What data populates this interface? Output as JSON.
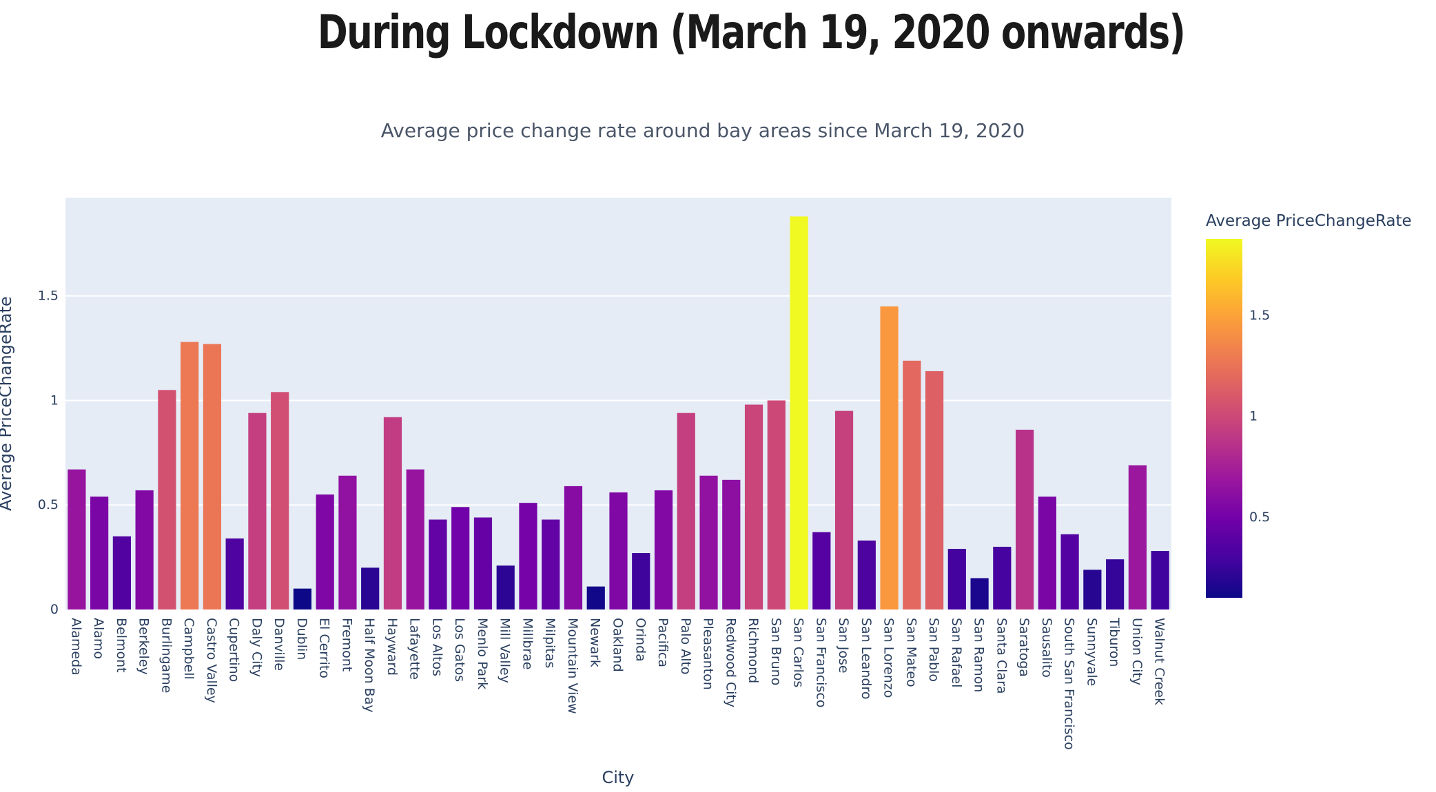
{
  "page": {
    "title": "During Lockdown (March 19, 2020 onwards)"
  },
  "chart_data": {
    "type": "bar",
    "title": "Average price change rate around bay areas since March 19, 2020",
    "xlabel": "City",
    "ylabel": "Average PriceChangeRate",
    "ylim": [
      0,
      1.97
    ],
    "yticks": [
      0,
      0.5,
      1,
      1.5
    ],
    "ytick_labels": [
      "0",
      "0.5",
      "1",
      "1.5"
    ],
    "grid": true,
    "colorbar": {
      "title": "Average PriceChangeRate",
      "range": [
        0.1,
        1.88
      ],
      "ticks": [
        0.5,
        1,
        1.5
      ],
      "tick_labels": [
        "0.5",
        "1",
        "1.5"
      ],
      "colorscale": [
        "#0d0887",
        "#46039f",
        "#7201a8",
        "#9c179e",
        "#bd3786",
        "#d8576b",
        "#ed7953",
        "#fb9f3a",
        "#fdca26",
        "#f0f921"
      ]
    },
    "categories": [
      "Alameda",
      "Alamo",
      "Belmont",
      "Berkeley",
      "Burlingame",
      "Campbell",
      "Castro Valley",
      "Cupertino",
      "Daly City",
      "Danville",
      "Dublin",
      "El Cerrito",
      "Fremont",
      "Half Moon Bay",
      "Hayward",
      "Lafayette",
      "Los Altos",
      "Los Gatos",
      "Menlo Park",
      "Mill Valley",
      "Millbrae",
      "Milpitas",
      "Mountain View",
      "Newark",
      "Oakland",
      "Orinda",
      "Pacifica",
      "Palo Alto",
      "Pleasanton",
      "Redwood City",
      "Richmond",
      "San Bruno",
      "San Carlos",
      "San Francisco",
      "San Jose",
      "San Leandro",
      "San Lorenzo",
      "San Mateo",
      "San Pablo",
      "San Rafael",
      "San Ramon",
      "Santa Clara",
      "Saratoga",
      "Sausalito",
      "South San Francisco",
      "Sunnyvale",
      "Tiburon",
      "Union City",
      "Walnut Creek"
    ],
    "values": [
      0.67,
      0.54,
      0.35,
      0.57,
      1.05,
      1.28,
      1.27,
      0.34,
      0.94,
      1.04,
      0.1,
      0.55,
      0.64,
      0.2,
      0.92,
      0.67,
      0.43,
      0.49,
      0.44,
      0.21,
      0.51,
      0.43,
      0.59,
      0.11,
      0.56,
      0.27,
      0.57,
      0.94,
      0.64,
      0.62,
      0.98,
      1.0,
      1.88,
      0.37,
      0.95,
      0.33,
      1.45,
      1.19,
      1.14,
      0.29,
      0.15,
      0.3,
      0.86,
      0.54,
      0.36,
      0.19,
      0.24,
      0.69,
      0.28
    ]
  }
}
